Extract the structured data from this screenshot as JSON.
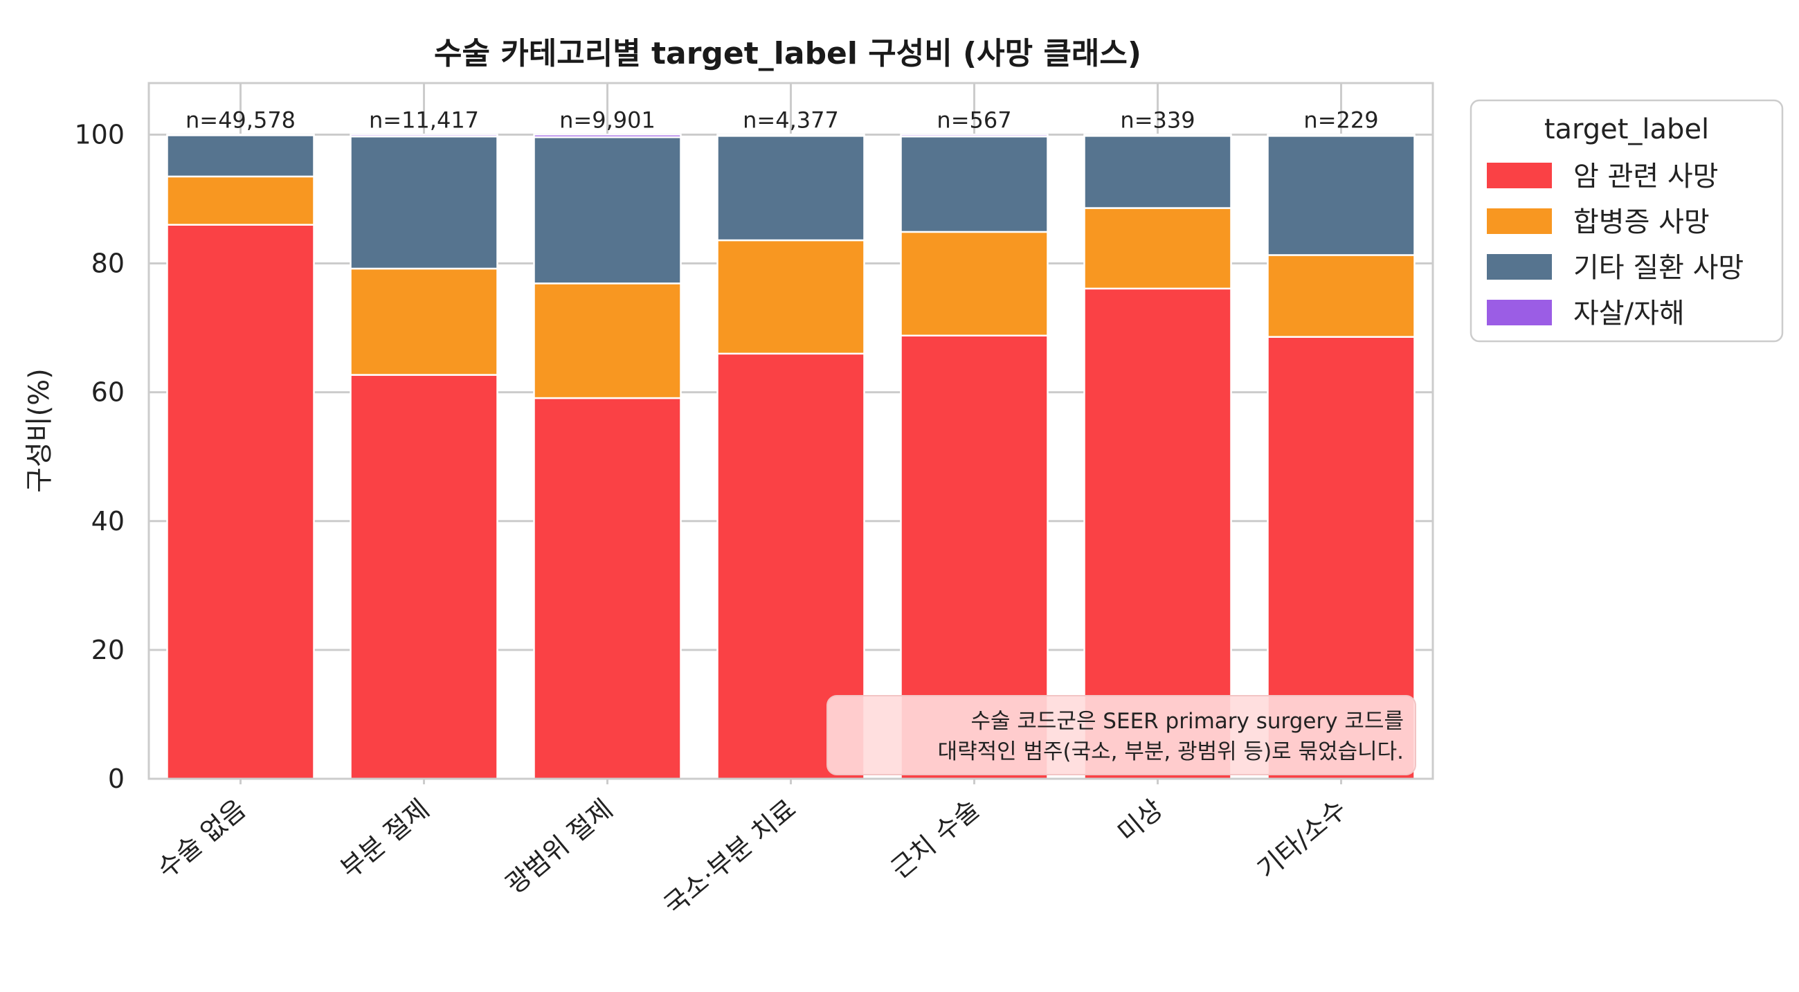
{
  "chart_data": {
    "type": "bar",
    "stacked": true,
    "title": "수술 카테고리별 target_label 구성비 (사망 클래스)",
    "xlabel": "",
    "ylabel": "구성비(%)",
    "ylim": [
      0,
      108
    ],
    "yticks": [
      0,
      20,
      40,
      60,
      80,
      100
    ],
    "grid": true,
    "categories": [
      "수술 없음",
      "부분 절제",
      "광범위 절제",
      "국소·부분 치료",
      "근치 수술",
      "미상",
      "기타/소수"
    ],
    "counts": [
      "n=49,578",
      "n=11,417",
      "n=9,901",
      "n=4,377",
      "n=567",
      "n=339",
      "n=229"
    ],
    "legend": {
      "title": "target_label",
      "placement": "outside-right"
    },
    "series": [
      {
        "name": "암 관련 사망",
        "color": "#fa4145",
        "values": [
          86.0,
          62.7,
          59.1,
          66.0,
          68.8,
          76.1,
          68.6
        ]
      },
      {
        "name": "합병증 사망",
        "color": "#f89721",
        "values": [
          7.5,
          16.5,
          17.8,
          17.6,
          16.1,
          12.5,
          12.7
        ]
      },
      {
        "name": "기타 질환 사망",
        "color": "#56748f",
        "values": [
          6.4,
          20.5,
          22.7,
          16.2,
          14.8,
          11.2,
          18.5
        ]
      },
      {
        "name": "자살/자해",
        "color": "#9b5de5",
        "values": [
          0.1,
          0.3,
          0.4,
          0.2,
          0.3,
          0.2,
          0.2
        ]
      }
    ],
    "annotation": {
      "lines": [
        "수술 코드군은 SEER primary surgery 코드를",
        "대략적인 범주(국소, 부분, 광범위 등)로 묶었습니다."
      ],
      "placement": "bottom-right"
    }
  }
}
